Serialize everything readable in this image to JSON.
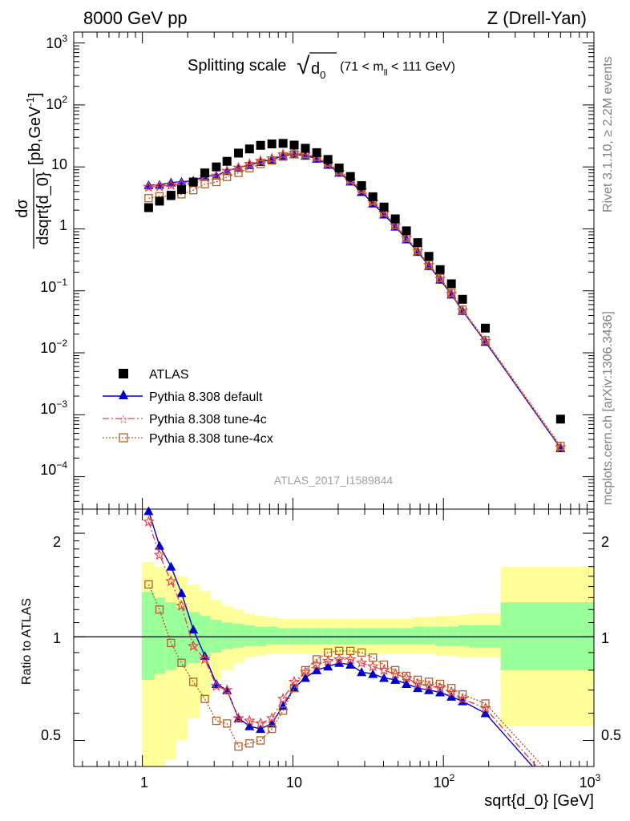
{
  "header": {
    "left": "8000 GeV pp",
    "right": "Z (Drell-Yan)"
  },
  "plot_title": {
    "main": "Splitting scale",
    "root_symbol": "√",
    "d": "d",
    "d_sub": "0",
    "range_pre": "(71 < m",
    "range_sub": "ll",
    "range_post": " < 111 GeV)"
  },
  "side_labels": {
    "rivet": "Rivet 3.1.10, ≥ 2.2M events",
    "mcplots": "mcplots.cern.ch [arXiv:1306.3436]"
  },
  "analysis_id": "ATLAS_2017_I1589844",
  "axes": {
    "ylabel_num": "dσ",
    "ylabel_den": "dsqrt{d_0}",
    "ylabel_unit": "[pb,GeV",
    "ylabel_unit_exp": "-1",
    "ylabel_unit_close": "]",
    "ratio_ylabel": "Ratio to ATLAS",
    "xlabel": "sqrt{d_0} [GeV]",
    "x_tick_labels": [
      {
        "base": "1",
        "exp": ""
      },
      {
        "base": "10",
        "exp": ""
      },
      {
        "base": "10",
        "exp": "2"
      },
      {
        "base": "10",
        "exp": "3"
      }
    ],
    "y_tick_labels": [
      {
        "base": "10",
        "exp": "3"
      },
      {
        "base": "10",
        "exp": "2"
      },
      {
        "base": "10",
        "exp": ""
      },
      {
        "base": "1",
        "exp": ""
      },
      {
        "base": "10",
        "exp": "−1"
      },
      {
        "base": "10",
        "exp": "−2"
      },
      {
        "base": "10",
        "exp": "−3"
      },
      {
        "base": "10",
        "exp": "−4"
      }
    ],
    "ratio_tick_labels": [
      "2",
      "1",
      "0.5"
    ]
  },
  "legend": [
    {
      "label": "ATLAS"
    },
    {
      "label": "Pythia 8.308 default"
    },
    {
      "label": "Pythia 8.308 tune-4c"
    },
    {
      "label": "Pythia 8.308 tune-4cx"
    }
  ],
  "colors": {
    "data": "#000000",
    "default": "#0000cc",
    "tune4c": "#e8454a",
    "tune4cx": "#b5602a",
    "band_inner": "#99ff99",
    "band_outer": "#ffff99"
  },
  "chart_data": {
    "type": "scatter",
    "x_scale": "log",
    "y_scale": "log",
    "xlim": [
      0.35,
      1000
    ],
    "ylim": [
      3e-05,
      1500
    ],
    "ratio_ylim": [
      0.42,
      2.35
    ],
    "ratio_y_scale": "log",
    "data_x": [
      1.1,
      1.3,
      1.55,
      1.82,
      2.18,
      2.6,
      3.1,
      3.65,
      4.35,
      5.15,
      6.1,
      7.25,
      8.6,
      10.2,
      12.1,
      14.4,
      17.1,
      20.3,
      24.1,
      28.6,
      34,
      40.3,
      47.9,
      56.8,
      67.5,
      80.1,
      95.1,
      113,
      134,
      190,
      600
    ],
    "data_y": [
      2.2,
      2.8,
      3.5,
      4.3,
      5.7,
      8,
      10,
      12.3,
      16.7,
      19.5,
      22.3,
      23.5,
      24,
      22.5,
      20,
      17,
      13.2,
      9.6,
      7,
      5,
      3.3,
      2.25,
      1.45,
      0.93,
      0.6,
      0.36,
      0.22,
      0.13,
      0.073,
      0.025,
      0.00085
    ],
    "series": [
      {
        "name": "Pythia 8.308 default",
        "marker": "triangle",
        "ratio": [
          2.32,
          1.84,
          1.6,
          1.34,
          1.05,
          0.88,
          0.73,
          0.7,
          0.58,
          0.55,
          0.54,
          0.56,
          0.63,
          0.71,
          0.76,
          0.8,
          0.82,
          0.84,
          0.83,
          0.79,
          0.78,
          0.76,
          0.75,
          0.73,
          0.71,
          0.7,
          0.69,
          0.67,
          0.65,
          0.6,
          0.34
        ]
      },
      {
        "name": "Pythia 8.308 tune-4c",
        "marker": "star",
        "ratio": [
          2.16,
          1.73,
          1.45,
          1.23,
          0.94,
          0.86,
          0.72,
          0.7,
          0.58,
          0.57,
          0.56,
          0.58,
          0.66,
          0.74,
          0.79,
          0.83,
          0.85,
          0.86,
          0.86,
          0.84,
          0.82,
          0.8,
          0.78,
          0.76,
          0.73,
          0.72,
          0.71,
          0.69,
          0.66,
          0.62,
          0.35
        ]
      },
      {
        "name": "Pythia 8.308 tune-4cx",
        "marker": "square",
        "ratio": [
          1.42,
          1.2,
          0.96,
          0.84,
          0.74,
          0.66,
          0.57,
          0.56,
          0.48,
          0.49,
          0.5,
          0.54,
          0.61,
          0.71,
          0.8,
          0.86,
          0.9,
          0.91,
          0.91,
          0.9,
          0.87,
          0.83,
          0.8,
          0.77,
          0.75,
          0.74,
          0.73,
          0.71,
          0.68,
          0.64,
          0.37
        ]
      }
    ],
    "bands": [
      {
        "x0": 0.99,
        "x1": 1.2,
        "outer": [
          0.35,
          1.65
        ],
        "inner": [
          0.75,
          1.35
        ]
      },
      {
        "x0": 1.2,
        "x1": 1.42,
        "outer": [
          0.4,
          1.6
        ],
        "inner": [
          0.78,
          1.3
        ]
      },
      {
        "x0": 1.42,
        "x1": 1.68,
        "outer": [
          0.44,
          1.55
        ],
        "inner": [
          0.8,
          1.26
        ]
      },
      {
        "x0": 1.68,
        "x1": 2,
        "outer": [
          0.5,
          1.5
        ],
        "inner": [
          0.82,
          1.22
        ]
      },
      {
        "x0": 2,
        "x1": 2.4,
        "outer": [
          0.58,
          1.42
        ],
        "inner": [
          0.84,
          1.18
        ]
      },
      {
        "x0": 2.4,
        "x1": 2.84,
        "outer": [
          0.66,
          1.36
        ],
        "inner": [
          0.87,
          1.15
        ]
      },
      {
        "x0": 2.84,
        "x1": 3.36,
        "outer": [
          0.75,
          1.28
        ],
        "inner": [
          0.9,
          1.12
        ]
      },
      {
        "x0": 3.36,
        "x1": 4,
        "outer": [
          0.8,
          1.23
        ],
        "inner": [
          0.92,
          1.1
        ]
      },
      {
        "x0": 4,
        "x1": 4.74,
        "outer": [
          0.84,
          1.2
        ],
        "inner": [
          0.93,
          1.09
        ]
      },
      {
        "x0": 4.74,
        "x1": 5.62,
        "outer": [
          0.87,
          1.17
        ],
        "inner": [
          0.94,
          1.08
        ]
      },
      {
        "x0": 5.62,
        "x1": 6.68,
        "outer": [
          0.88,
          1.15
        ],
        "inner": [
          0.94,
          1.07
        ]
      },
      {
        "x0": 6.68,
        "x1": 7.94,
        "outer": [
          0.89,
          1.14
        ],
        "inner": [
          0.95,
          1.07
        ]
      },
      {
        "x0": 7.94,
        "x1": 9.44,
        "outer": [
          0.89,
          1.13
        ],
        "inner": [
          0.95,
          1.06
        ]
      },
      {
        "x0": 9.44,
        "x1": 11.2,
        "outer": [
          0.89,
          1.13
        ],
        "inner": [
          0.95,
          1.06
        ]
      },
      {
        "x0": 11.2,
        "x1": 13.3,
        "outer": [
          0.89,
          1.13
        ],
        "inner": [
          0.95,
          1.06
        ]
      },
      {
        "x0": 13.3,
        "x1": 15.8,
        "outer": [
          0.89,
          1.13
        ],
        "inner": [
          0.95,
          1.06
        ]
      },
      {
        "x0": 15.8,
        "x1": 18.8,
        "outer": [
          0.89,
          1.13
        ],
        "inner": [
          0.95,
          1.06
        ]
      },
      {
        "x0": 18.8,
        "x1": 22.3,
        "outer": [
          0.89,
          1.13
        ],
        "inner": [
          0.95,
          1.06
        ]
      },
      {
        "x0": 22.3,
        "x1": 26.5,
        "outer": [
          0.89,
          1.13
        ],
        "inner": [
          0.95,
          1.06
        ]
      },
      {
        "x0": 26.5,
        "x1": 31.5,
        "outer": [
          0.89,
          1.13
        ],
        "inner": [
          0.95,
          1.06
        ]
      },
      {
        "x0": 31.5,
        "x1": 37.4,
        "outer": [
          0.89,
          1.13
        ],
        "inner": [
          0.95,
          1.06
        ]
      },
      {
        "x0": 37.4,
        "x1": 44.4,
        "outer": [
          0.89,
          1.13
        ],
        "inner": [
          0.95,
          1.06
        ]
      },
      {
        "x0": 44.4,
        "x1": 52.8,
        "outer": [
          0.89,
          1.13
        ],
        "inner": [
          0.95,
          1.06
        ]
      },
      {
        "x0": 52.8,
        "x1": 62.7,
        "outer": [
          0.89,
          1.13
        ],
        "inner": [
          0.95,
          1.06
        ]
      },
      {
        "x0": 62.7,
        "x1": 74.5,
        "outer": [
          0.89,
          1.14
        ],
        "inner": [
          0.95,
          1.07
        ]
      },
      {
        "x0": 74.5,
        "x1": 88.5,
        "outer": [
          0.89,
          1.14
        ],
        "inner": [
          0.95,
          1.07
        ]
      },
      {
        "x0": 88.5,
        "x1": 105,
        "outer": [
          0.88,
          1.15
        ],
        "inner": [
          0.94,
          1.07
        ]
      },
      {
        "x0": 105,
        "x1": 125,
        "outer": [
          0.88,
          1.15
        ],
        "inner": [
          0.94,
          1.07
        ]
      },
      {
        "x0": 125,
        "x1": 148,
        "outer": [
          0.87,
          1.16
        ],
        "inner": [
          0.94,
          1.08
        ]
      },
      {
        "x0": 148,
        "x1": 240,
        "outer": [
          0.87,
          1.17
        ],
        "inner": [
          0.93,
          1.08
        ]
      },
      {
        "x0": 240,
        "x1": 1000,
        "outer": [
          0.55,
          1.6
        ],
        "inner": [
          0.8,
          1.26
        ]
      }
    ]
  }
}
